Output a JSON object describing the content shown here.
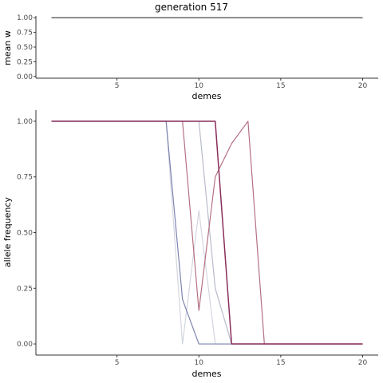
{
  "title": "generation 517",
  "chart_data": [
    {
      "type": "line",
      "title": "generation 517",
      "xlabel": "demes",
      "ylabel": "mean w",
      "xlim": [
        0.05,
        20.95
      ],
      "ylim": [
        -0.03,
        1.03
      ],
      "x_ticks": [
        5,
        10,
        15,
        20
      ],
      "x_tick_labels": [
        "5",
        "10",
        "15",
        "20"
      ],
      "y_ticks": [
        0,
        0.25,
        0.5,
        0.75,
        1
      ],
      "y_tick_labels": [
        "0.00",
        "0.25",
        "0.50",
        "0.75",
        "1.00"
      ],
      "grid": false,
      "series": [
        {
          "color": "#333333",
          "x": [
            1,
            2,
            3,
            4,
            5,
            6,
            7,
            8,
            9,
            10,
            11,
            12,
            13,
            14,
            15,
            16,
            17,
            18,
            19,
            20
          ],
          "y": [
            1,
            1,
            1,
            1,
            1,
            1,
            1,
            1,
            1,
            1,
            1,
            1,
            1,
            1,
            1,
            1,
            1,
            1,
            1,
            1
          ]
        }
      ]
    },
    {
      "type": "line",
      "title": "",
      "xlabel": "demes",
      "ylabel": "allele frequency",
      "xlim": [
        0.05,
        20.95
      ],
      "ylim": [
        -0.05,
        1.05
      ],
      "x_ticks": [
        5,
        10,
        15,
        20
      ],
      "x_tick_labels": [
        "5",
        "10",
        "15",
        "20"
      ],
      "y_ticks": [
        0,
        0.25,
        0.5,
        0.75,
        1
      ],
      "y_tick_labels": [
        "0.00",
        "0.25",
        "0.50",
        "0.75",
        "1.00"
      ],
      "grid": false,
      "series": [
        {
          "color": "#b8bccb",
          "x": [
            1,
            2,
            3,
            4,
            5,
            6,
            7,
            8,
            9,
            10,
            11,
            12,
            13,
            14,
            15,
            16,
            17,
            18,
            19,
            20
          ],
          "y": [
            1,
            1,
            1,
            1,
            1,
            1,
            1,
            1,
            1,
            1,
            0.25,
            0,
            0,
            0,
            0,
            0,
            0,
            0,
            0,
            0
          ]
        },
        {
          "color": "#d3d6df",
          "x": [
            1,
            2,
            3,
            4,
            5,
            6,
            7,
            8,
            9,
            10,
            11,
            12,
            13,
            14,
            15,
            16,
            17,
            18,
            19,
            20
          ],
          "y": [
            1,
            1,
            1,
            1,
            1,
            1,
            1,
            1,
            0,
            0.6,
            0,
            0,
            0,
            0,
            0,
            0,
            0,
            0,
            0,
            0
          ]
        },
        {
          "color": "#7d84b0",
          "x": [
            1,
            2,
            3,
            4,
            5,
            6,
            7,
            8,
            9,
            10,
            11,
            12,
            13,
            14,
            15,
            16,
            17,
            18,
            19,
            20
          ],
          "y": [
            1,
            1,
            1,
            1,
            1,
            1,
            1,
            1,
            0.2,
            0,
            0,
            0,
            0,
            0,
            0,
            0,
            0,
            0,
            0,
            0
          ]
        },
        {
          "color": "#b57083",
          "x": [
            1,
            2,
            3,
            4,
            5,
            6,
            7,
            8,
            9,
            10,
            11,
            12,
            13,
            14,
            15,
            16,
            17,
            18,
            19,
            20
          ],
          "y": [
            1,
            1,
            1,
            1,
            1,
            1,
            1,
            1,
            1,
            0.15,
            0.75,
            0.9,
            1,
            0,
            0,
            0,
            0,
            0,
            0,
            0
          ]
        },
        {
          "color": "#8a2d5a",
          "x": [
            1,
            2,
            3,
            4,
            5,
            6,
            7,
            8,
            9,
            10,
            11,
            12,
            13,
            14,
            15,
            16,
            17,
            18,
            19,
            20
          ],
          "y": [
            1,
            1,
            1,
            1,
            1,
            1,
            1,
            1,
            1,
            1,
            1,
            0,
            0,
            0,
            0,
            0,
            0,
            0,
            0,
            0
          ]
        }
      ]
    }
  ]
}
